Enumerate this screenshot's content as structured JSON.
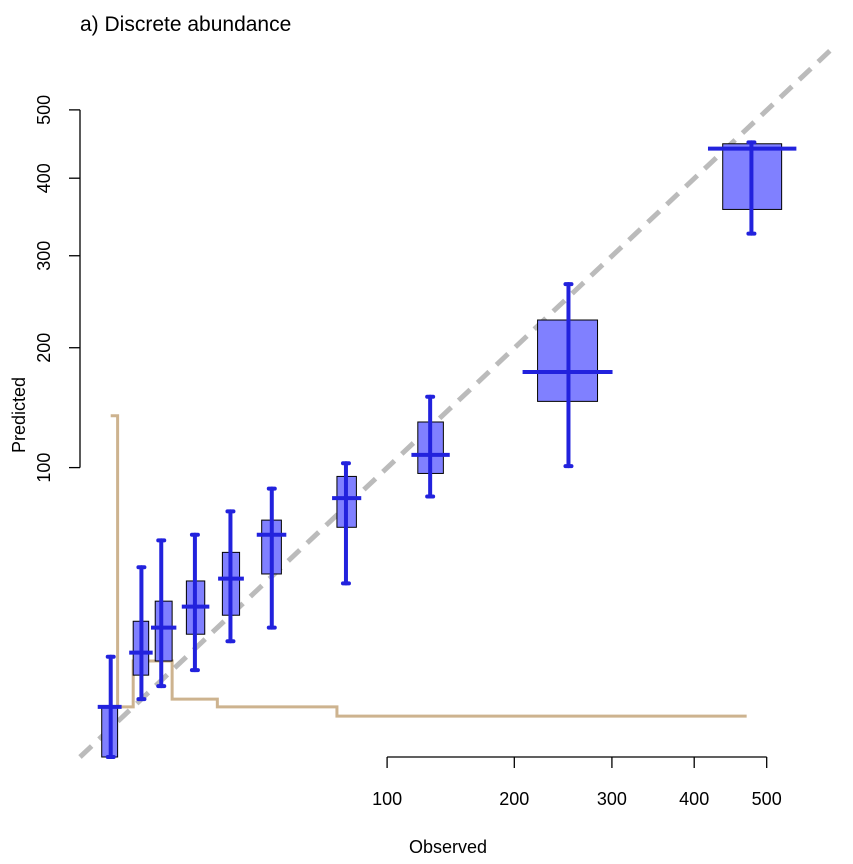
{
  "chart_data": {
    "type": "box",
    "title": "a) Discrete abundance",
    "xlabel": "Observed",
    "ylabel": "Predicted",
    "xscale": "sqrt",
    "yscale": "sqrt",
    "xlim": [
      0,
      520
    ],
    "ylim": [
      0,
      520
    ],
    "x_ticks": [
      100,
      200,
      300,
      400,
      500
    ],
    "y_ticks": [
      100,
      200,
      300,
      400,
      500
    ],
    "reference_line": "1:1",
    "colors": {
      "box_fill": "#8080ff",
      "box_stroke": "#000000",
      "whisker": "#2222dd",
      "reference": "#bbbbbb",
      "histogram": "#cdb38f"
    },
    "bins": [
      {
        "x": 1,
        "x_low": 0.5,
        "x_high": 1.5,
        "median": 3,
        "q1": 0,
        "q3": 3,
        "whisker_low": 0,
        "whisker_high": 12
      },
      {
        "x": 4,
        "x_low": 3,
        "x_high": 5,
        "median": 13,
        "q1": 8,
        "q3": 22,
        "whisker_low": 4,
        "whisker_high": 43
      },
      {
        "x": 7,
        "x_low": 6,
        "x_high": 9,
        "median": 20,
        "q1": 11,
        "q3": 29,
        "whisker_low": 6,
        "whisker_high": 56
      },
      {
        "x": 14,
        "x_low": 12,
        "x_high": 16.5,
        "median": 27,
        "q1": 18,
        "q3": 37,
        "whisker_low": 9,
        "whisker_high": 59
      },
      {
        "x": 24,
        "x_low": 21.5,
        "x_high": 27,
        "median": 38,
        "q1": 24,
        "q3": 50,
        "whisker_low": 16,
        "whisker_high": 72
      },
      {
        "x": 39,
        "x_low": 35,
        "x_high": 43,
        "median": 59,
        "q1": 40,
        "q3": 67,
        "whisker_low": 20,
        "whisker_high": 86
      },
      {
        "x": 75,
        "x_low": 70,
        "x_high": 81,
        "median": 80,
        "q1": 63,
        "q3": 94,
        "whisker_low": 36,
        "whisker_high": 103
      },
      {
        "x": 130,
        "x_low": 121,
        "x_high": 140,
        "median": 109,
        "q1": 96,
        "q3": 134,
        "whisker_low": 81,
        "whisker_high": 155
      },
      {
        "x": 253,
        "x_low": 222,
        "x_high": 284,
        "median": 177,
        "q1": 151,
        "q3": 228,
        "whisker_low": 101,
        "whisker_high": 267
      },
      {
        "x": 478,
        "x_low": 438,
        "x_high": 522,
        "median": 442,
        "q1": 358,
        "q3": 449,
        "whisker_low": 327,
        "whisker_high": 451
      }
    ],
    "histogram_steps": [
      [
        1,
        139
      ],
      [
        1.5,
        3
      ],
      [
        3,
        11
      ],
      [
        5,
        11
      ],
      [
        9,
        4
      ],
      [
        20,
        3
      ],
      [
        70,
        2
      ],
      [
        200,
        2
      ],
      [
        330,
        2
      ],
      [
        460,
        2
      ]
    ]
  }
}
